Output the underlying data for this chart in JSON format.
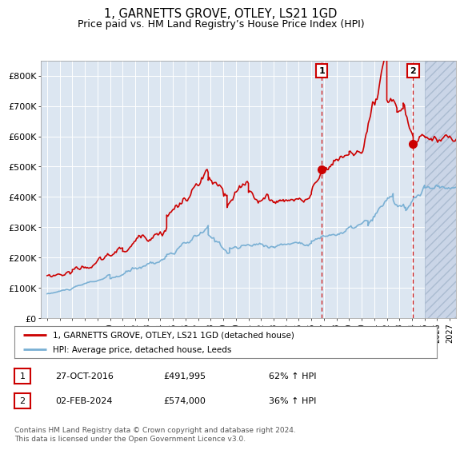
{
  "title": "1, GARNETTS GROVE, OTLEY, LS21 1GD",
  "subtitle": "Price paid vs. HM Land Registry’s House Price Index (HPI)",
  "title_fontsize": 10.5,
  "subtitle_fontsize": 9,
  "background_color": "#ffffff",
  "plot_bg_color": "#dce6f1",
  "grid_color": "#ffffff",
  "hpi_line_color": "#7ab0d4",
  "price_line_color": "#cc0000",
  "ylim": [
    0,
    850000
  ],
  "yticks": [
    0,
    100000,
    200000,
    300000,
    400000,
    500000,
    600000,
    700000,
    800000
  ],
  "ytick_labels": [
    "£0",
    "£100K",
    "£200K",
    "£300K",
    "£400K",
    "£500K",
    "£600K",
    "£700K",
    "£800K"
  ],
  "sale1_year": 2016.82,
  "sale1_price": 491995,
  "sale2_year": 2024.09,
  "sale2_price": 574000,
  "legend_label_red": "1, GARNETTS GROVE, OTLEY, LS21 1GD (detached house)",
  "legend_label_blue": "HPI: Average price, detached house, Leeds",
  "table_rows": [
    {
      "num": "1",
      "date": "27-OCT-2016",
      "price": "£491,995",
      "hpi": "62% ↑ HPI"
    },
    {
      "num": "2",
      "date": "02-FEB-2024",
      "price": "£574,000",
      "hpi": "36% ↑ HPI"
    }
  ],
  "footnote": "Contains HM Land Registry data © Crown copyright and database right 2024.\nThis data is licensed under the Open Government Licence v3.0.",
  "hatch_region_start": 2025.0,
  "xtick_years": [
    1995,
    1996,
    1997,
    1998,
    1999,
    2000,
    2001,
    2002,
    2003,
    2004,
    2005,
    2006,
    2007,
    2008,
    2009,
    2010,
    2011,
    2012,
    2013,
    2014,
    2015,
    2016,
    2017,
    2018,
    2019,
    2020,
    2021,
    2022,
    2023,
    2024,
    2025,
    2026,
    2027
  ],
  "xlim_min": 1994.5,
  "xlim_max": 2027.5
}
